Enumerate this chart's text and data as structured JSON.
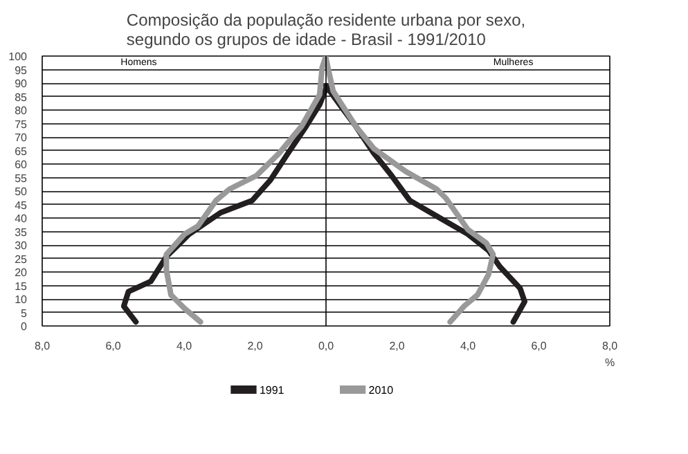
{
  "chart_data": {
    "type": "line",
    "title": "Composição da população residente urbana por sexo,\nsegundo os grupos de idade - Brasil - 1991/2010",
    "xlim": [
      -8,
      8
    ],
    "xticks": [
      {
        "value": -8,
        "label": "8,0"
      },
      {
        "value": -6,
        "label": "6,0"
      },
      {
        "value": -4,
        "label": "4,0"
      },
      {
        "value": -2,
        "label": "2,0"
      },
      {
        "value": 0,
        "label": "0,0"
      },
      {
        "value": 2,
        "label": "2,0"
      },
      {
        "value": 4,
        "label": "4,0"
      },
      {
        "value": 6,
        "label": "6,0"
      },
      {
        "value": 8,
        "label": "8,0"
      }
    ],
    "ylim": [
      0,
      100
    ],
    "yticks": [
      0,
      5,
      10,
      15,
      20,
      25,
      30,
      35,
      40,
      45,
      50,
      55,
      60,
      65,
      70,
      75,
      80,
      85,
      90,
      95,
      100
    ],
    "grid": "y",
    "legend": "bottom",
    "line_style": "solid",
    "marker": "none",
    "annotations": [
      "Homens",
      "Mulheres",
      "%"
    ],
    "ref_lines": [
      {
        "axis": "x",
        "value": 0,
        "color": "#000000"
      }
    ],
    "series": [
      {
        "name": "1991",
        "color": "#231f20",
        "x": [
          -5.36,
          -5.7,
          -5.57,
          -4.94,
          -4.5,
          -3.86,
          -2.97,
          -2.08,
          -1.57,
          -1.07,
          -0.56,
          -0.18,
          0
        ],
        "values": [
          1.5,
          7.3,
          12.7,
          16.5,
          25.7,
          34,
          42,
          46.5,
          54,
          64,
          74,
          82,
          88
        ]
      },
      {
        "color": "#231f20",
        "x": [
          5.28,
          5.6,
          5.47,
          4.9,
          4.58,
          4.0,
          3.12,
          2.36,
          1.85,
          1.35,
          0.84,
          0.46,
          0
        ],
        "values": [
          1.5,
          9,
          14,
          22,
          28,
          34,
          40.7,
          46.5,
          55.7,
          64,
          74,
          80.7,
          89
        ]
      },
      {
        "name": "2010",
        "color": "#999999",
        "x": [
          -3.54,
          -3.99,
          -4.37,
          -4.5,
          -4.5,
          -3.99,
          -3.61,
          -3.1,
          -2.72,
          -1.96,
          -1.32,
          -0.69,
          -0.18,
          -0.11,
          0
        ],
        "values": [
          1.5,
          6.5,
          11.5,
          20.7,
          26.5,
          34,
          37,
          46.5,
          50.7,
          55.7,
          64,
          74,
          85.7,
          95.7,
          100
        ]
      },
      {
        "color": "#999999",
        "x": [
          3.5,
          3.89,
          4.27,
          4.58,
          4.71,
          4.52,
          4.0,
          3.38,
          3.12,
          2.24,
          1.35,
          0.84,
          0.2,
          0
        ],
        "values": [
          1.5,
          7.3,
          11.5,
          19,
          26.5,
          30.7,
          35.7,
          47.3,
          50.7,
          57.3,
          65.7,
          74,
          87,
          99
        ]
      }
    ]
  }
}
